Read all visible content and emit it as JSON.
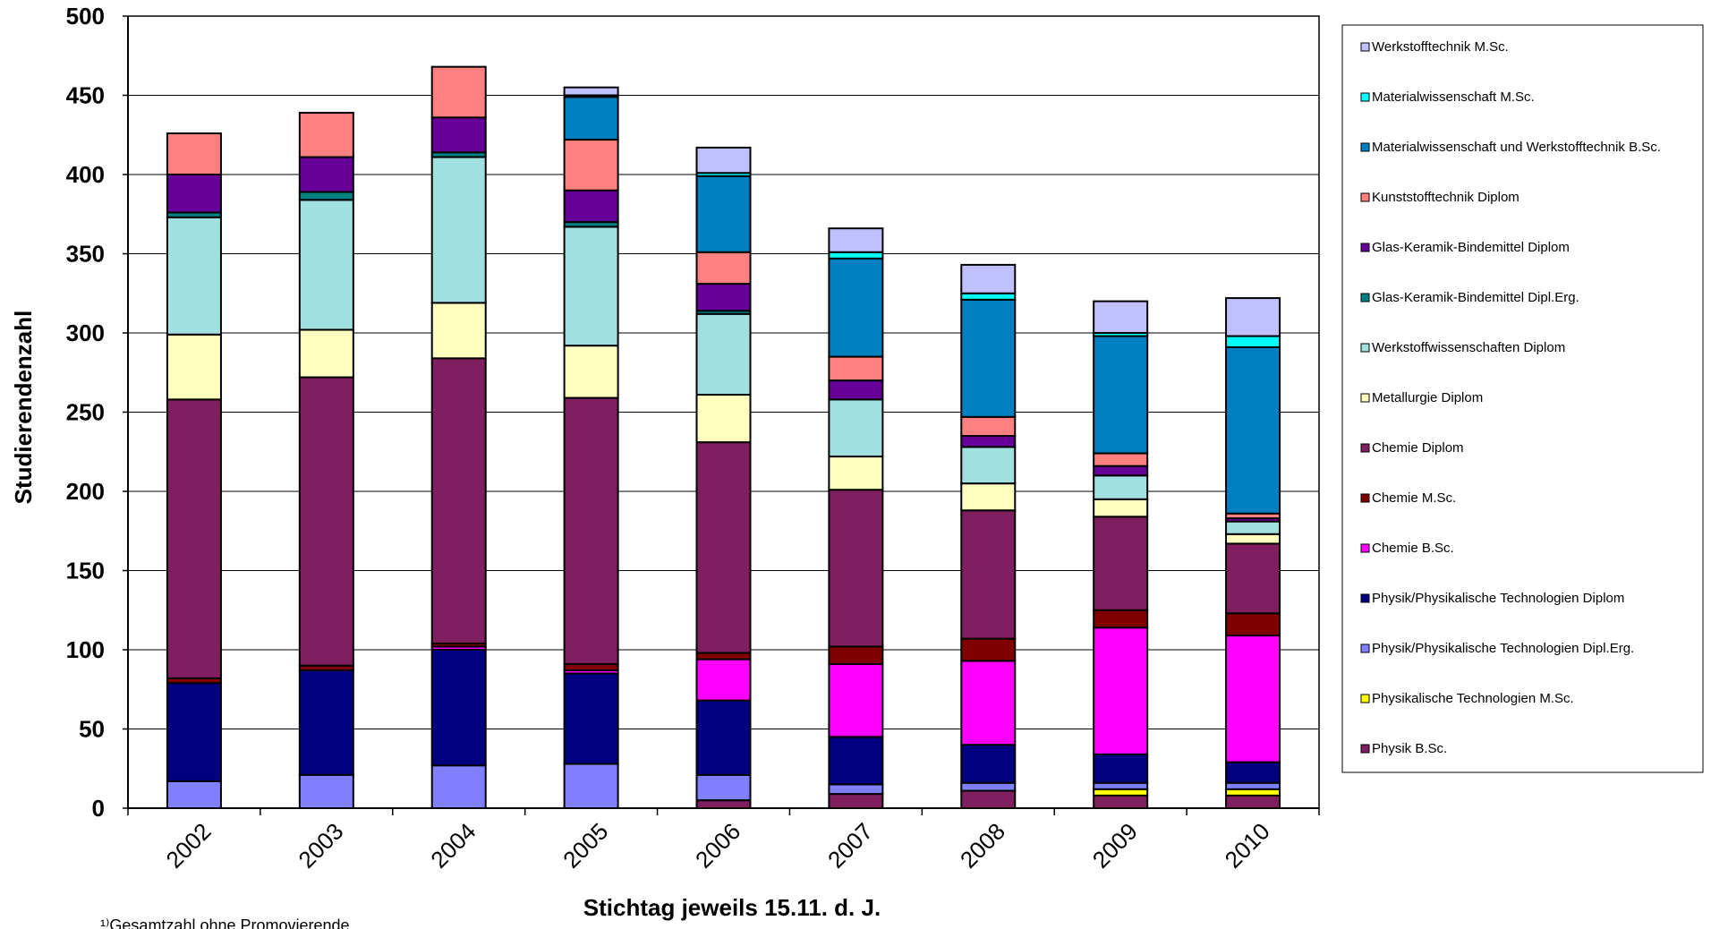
{
  "chart_data": {
    "type": "bar",
    "stacked": true,
    "title": "",
    "xlabel": "Stichtag jeweils 15.11. d. J.",
    "ylabel": "Studierendenzahl",
    "ylim": [
      0,
      500
    ],
    "yticks": [
      "0",
      "50",
      "100",
      "150",
      "200",
      "250",
      "300",
      "350",
      "400",
      "450",
      "500"
    ],
    "grid": true,
    "legend_position": "right",
    "categories": [
      "2002",
      "2003",
      "2004",
      "2005",
      "2006",
      "2007",
      "2008",
      "2009",
      "2010"
    ],
    "series": [
      {
        "name": "Physik B.Sc.",
        "color": "#7F1F5F",
        "values": [
          0,
          0,
          0,
          0,
          5,
          9,
          11,
          8,
          8
        ]
      },
      {
        "name": "Physikalische Technologien M.Sc.",
        "color": "#FFFF00",
        "values": [
          0,
          0,
          0,
          0,
          0,
          0,
          0,
          4,
          4
        ]
      },
      {
        "name": "Physik/Physikalische Technologien Dipl.Erg.",
        "color": "#8080FF",
        "values": [
          17,
          21,
          27,
          28,
          16,
          6,
          5,
          4,
          4
        ]
      },
      {
        "name": "Physik/Physikalische Technologien Diplom",
        "color": "#000080",
        "values": [
          62,
          66,
          73,
          57,
          47,
          30,
          24,
          18,
          13
        ]
      },
      {
        "name": "Chemie B.Sc.",
        "color": "#FF00FF",
        "values": [
          0,
          0,
          2,
          2,
          26,
          46,
          53,
          80,
          80
        ]
      },
      {
        "name": "Chemie M.Sc.",
        "color": "#800000",
        "values": [
          3,
          3,
          2,
          4,
          4,
          11,
          14,
          11,
          14
        ]
      },
      {
        "name": "Chemie Diplom",
        "color": "#7F1F5F",
        "values": [
          176,
          182,
          180,
          168,
          133,
          99,
          81,
          59,
          44
        ]
      },
      {
        "name": "Metallurgie Diplom",
        "color": "#FFFFC0",
        "values": [
          41,
          30,
          35,
          33,
          30,
          21,
          17,
          11,
          6
        ]
      },
      {
        "name": "Werkstoffwissenschaften Diplom",
        "color": "#A0E0E0",
        "values": [
          74,
          82,
          92,
          75,
          51,
          36,
          23,
          15,
          8
        ]
      },
      {
        "name": "Glas-Keramik-Bindemittel Dipl.Erg.",
        "color": "#008080",
        "values": [
          3,
          5,
          3,
          3,
          2,
          0,
          0,
          0,
          0
        ]
      },
      {
        "name": "Glas-Keramik-Bindemittel Diplom",
        "color": "#660099",
        "values": [
          24,
          22,
          22,
          20,
          17,
          12,
          7,
          6,
          2
        ]
      },
      {
        "name": "Kunststofftechnik Diplom",
        "color": "#FF8080",
        "values": [
          26,
          28,
          32,
          32,
          20,
          15,
          12,
          8,
          3
        ]
      },
      {
        "name": "Materialwissenschaft und Werkstofftechnik B.Sc.",
        "color": "#0080C0",
        "values": [
          0,
          0,
          0,
          27,
          48,
          62,
          74,
          74,
          105
        ]
      },
      {
        "name": "Materialwissenschaft M.Sc.",
        "color": "#00FFFF",
        "values": [
          0,
          0,
          0,
          1,
          2,
          4,
          4,
          2,
          7
        ]
      },
      {
        "name": "Werkstofftechnik M.Sc.",
        "color": "#C0C0FF",
        "values": [
          0,
          0,
          0,
          5,
          16,
          15,
          18,
          20,
          24
        ]
      }
    ],
    "footnote": "¹⁾Gesamtzahl ohne Promovierende"
  }
}
